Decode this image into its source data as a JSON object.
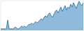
{
  "chart_data": {
    "type": "area",
    "values": [
      1,
      1,
      1,
      1,
      1,
      7,
      1,
      1,
      1,
      1,
      2,
      2,
      1,
      1,
      2,
      3,
      2,
      3,
      2,
      3,
      4,
      4,
      5,
      4,
      5,
      6,
      5,
      6,
      7,
      8,
      7,
      9,
      10,
      9,
      11,
      12,
      10,
      9,
      11,
      13,
      14,
      12,
      14,
      16,
      13,
      15,
      17,
      14,
      16,
      15,
      18,
      16,
      19,
      17,
      15,
      18,
      20,
      18,
      17,
      19
    ],
    "color": "#3182bd",
    "ylim": [
      0,
      20.4
    ],
    "grid": false,
    "tick_labels": false
  }
}
